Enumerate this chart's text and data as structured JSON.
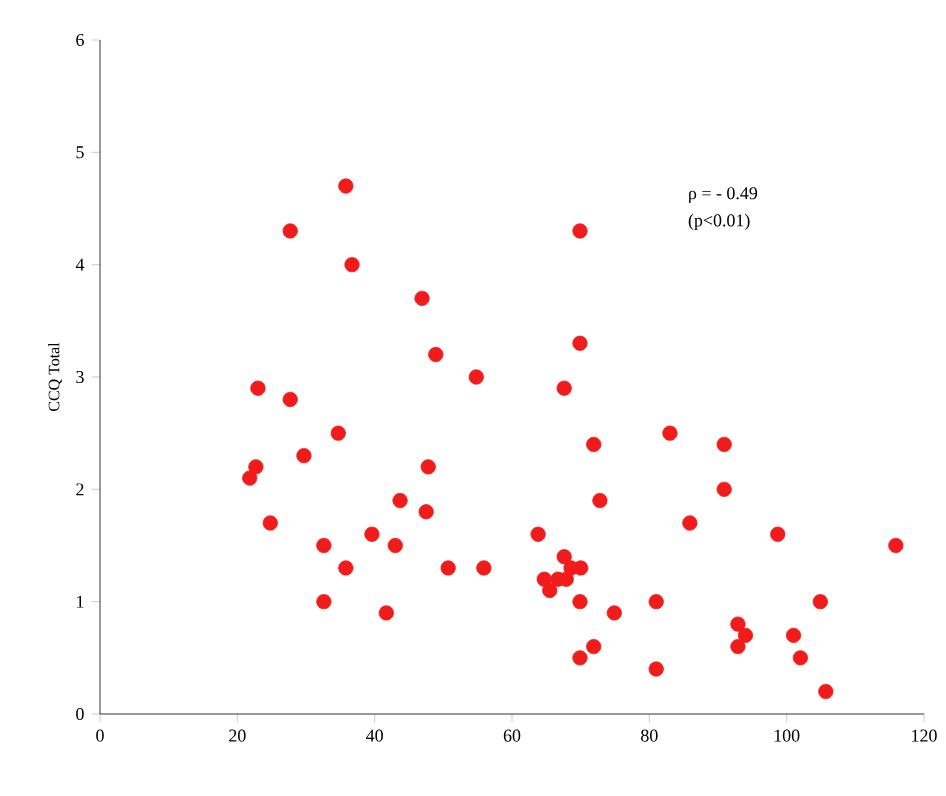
{
  "chart_data": {
    "type": "scatter",
    "ylabel": "CCQ Total",
    "annotations": [
      "ρ = - 0.49",
      "(p<0.01)"
    ],
    "xlim": [
      0,
      120
    ],
    "ylim": [
      0,
      6
    ],
    "xticks": [
      0,
      20,
      40,
      60,
      80,
      100,
      120
    ],
    "yticks": [
      0,
      1,
      2,
      3,
      4,
      5,
      6
    ],
    "grid": false,
    "marker": "circle",
    "series": [
      {
        "color": "#f01c1c",
        "x": [
          21.8,
          22.7,
          23,
          24.8,
          27.7,
          27.7,
          29.7,
          32.6,
          32.6,
          34.7,
          35.8,
          35.8,
          36.7,
          39.6,
          41.7,
          43,
          43.7,
          46.9,
          47.5,
          47.8,
          48.9,
          50.7,
          54.8,
          55.9,
          63.8,
          64.7,
          65.5,
          66.7,
          67.6,
          67.9,
          67.6,
          68.6,
          69.9,
          69.9,
          69.9,
          69.9,
          70,
          71.9,
          71.9,
          72.8,
          74.9,
          81,
          81,
          83,
          85.9,
          90.9,
          90.9,
          92.9,
          92.9,
          94,
          98.7,
          101,
          102,
          104.9,
          105.7,
          115.9
        ],
        "values": [
          2.1,
          2.2,
          2.9,
          1.7,
          2.8,
          4.3,
          2.3,
          1.5,
          1.0,
          2.5,
          1.3,
          4.7,
          4.0,
          1.6,
          0.9,
          1.5,
          1.9,
          3.7,
          1.8,
          2.2,
          3.2,
          1.3,
          3.0,
          1.3,
          1.6,
          1.2,
          1.1,
          1.2,
          1.4,
          1.2,
          2.9,
          1.3,
          4.3,
          3.3,
          1.0,
          0.5,
          1.3,
          2.4,
          0.6,
          1.9,
          0.9,
          1.0,
          0.4,
          2.5,
          1.7,
          2.4,
          2.0,
          0.8,
          0.6,
          0.7,
          1.6,
          0.7,
          0.5,
          1.0,
          0.2,
          1.5
        ]
      }
    ]
  }
}
